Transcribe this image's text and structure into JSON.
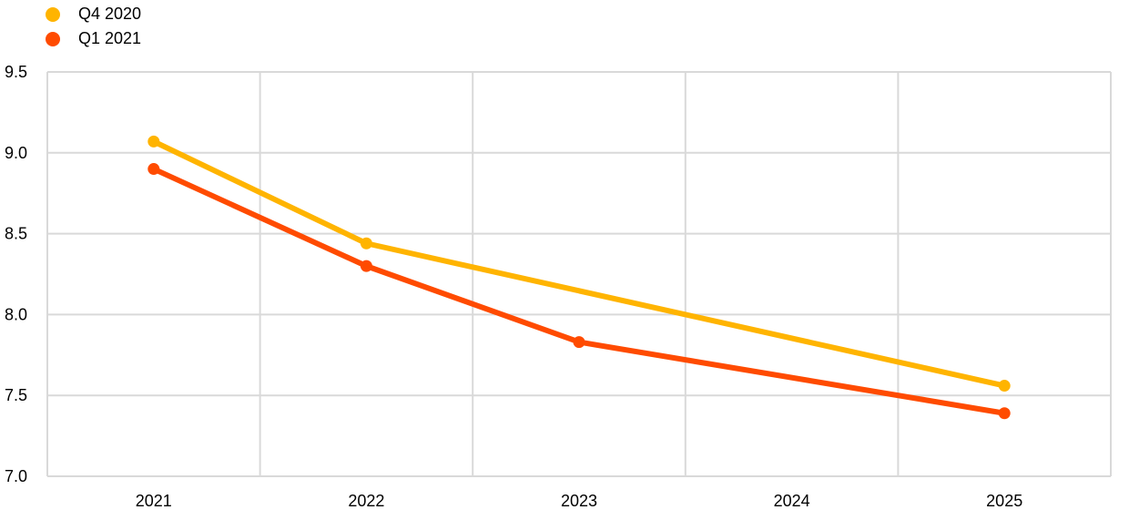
{
  "chart_data": {
    "type": "line",
    "title": "",
    "xlabel": "",
    "ylabel": "",
    "x": [
      "2021",
      "2022",
      "2023",
      "2024",
      "2025"
    ],
    "ylim": [
      7.0,
      9.5
    ],
    "yticks": [
      "7.0",
      "7.5",
      "8.0",
      "8.5",
      "9.0",
      "9.5"
    ],
    "grid": true,
    "legend_position": "top-left",
    "series": [
      {
        "name": "Q4 2020",
        "color": "#FFB400",
        "points": [
          {
            "x": "2021",
            "y": 9.07
          },
          {
            "x": "2022",
            "y": 8.44
          },
          {
            "x": "2025",
            "y": 7.56
          }
        ]
      },
      {
        "name": "Q1 2021",
        "color": "#FF4B00",
        "points": [
          {
            "x": "2021",
            "y": 8.9
          },
          {
            "x": "2022",
            "y": 8.3
          },
          {
            "x": "2023",
            "y": 7.83
          },
          {
            "x": "2025",
            "y": 7.39
          }
        ]
      }
    ]
  }
}
